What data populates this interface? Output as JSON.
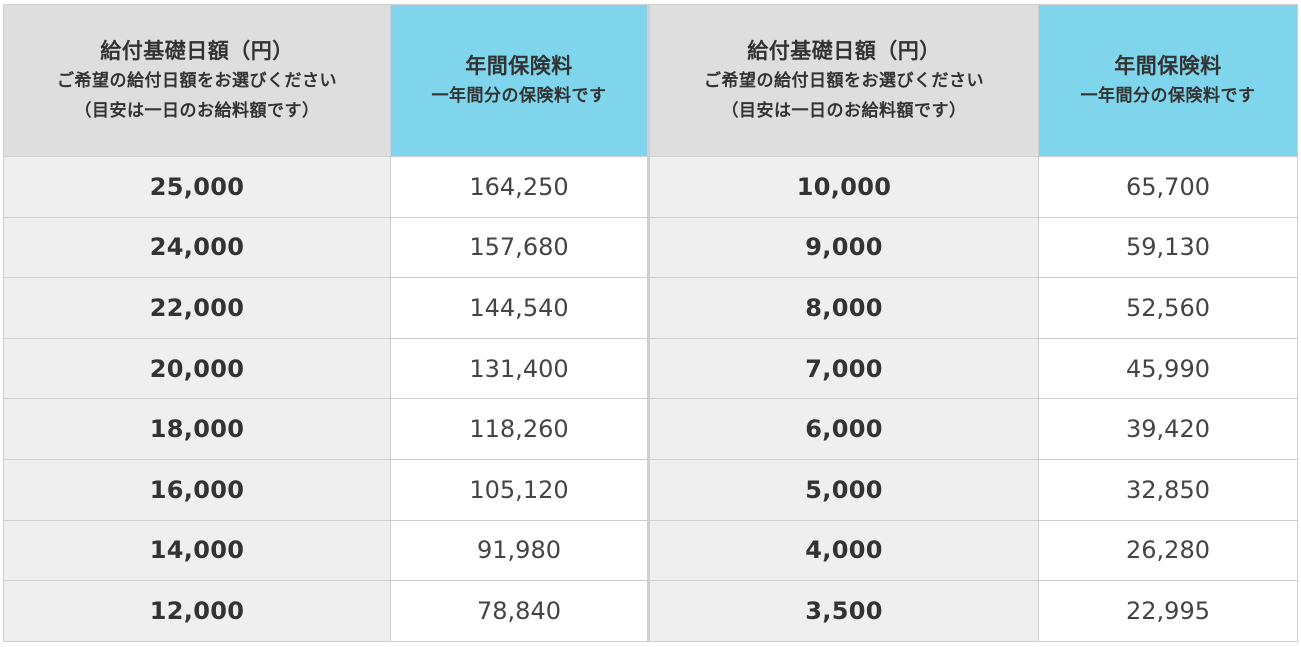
{
  "header": {
    "amount_title": "給付基礎日額（円）",
    "amount_sub1": "ご希望の給付日額をお選びください",
    "amount_sub2": "（目安は一日のお給料額です）",
    "fee_title": "年間保険料",
    "fee_sub": "一年間分の保険料です"
  },
  "rows": [
    {
      "left_amount": "25,000",
      "left_fee": "164,250",
      "right_amount": "10,000",
      "right_fee": "65,700"
    },
    {
      "left_amount": "24,000",
      "left_fee": "157,680",
      "right_amount": "9,000",
      "right_fee": "59,130"
    },
    {
      "left_amount": "22,000",
      "left_fee": "144,540",
      "right_amount": "8,000",
      "right_fee": "52,560"
    },
    {
      "left_amount": "20,000",
      "left_fee": "131,400",
      "right_amount": "7,000",
      "right_fee": "45,990"
    },
    {
      "left_amount": "18,000",
      "left_fee": "118,260",
      "right_amount": "6,000",
      "right_fee": "39,420"
    },
    {
      "left_amount": "16,000",
      "left_fee": "105,120",
      "right_amount": "5,000",
      "right_fee": "32,850"
    },
    {
      "left_amount": "14,000",
      "left_fee": "91,980",
      "right_amount": "4,000",
      "right_fee": "26,280"
    },
    {
      "left_amount": "12,000",
      "left_fee": "78,840",
      "right_amount": "3,500",
      "right_fee": "22,995"
    }
  ],
  "colors": {
    "header_gray": "#dedede",
    "header_blue": "#7fd5eb",
    "amount_cell": "#efefef",
    "fee_cell": "#ffffff",
    "border": "#cfcfcf"
  }
}
